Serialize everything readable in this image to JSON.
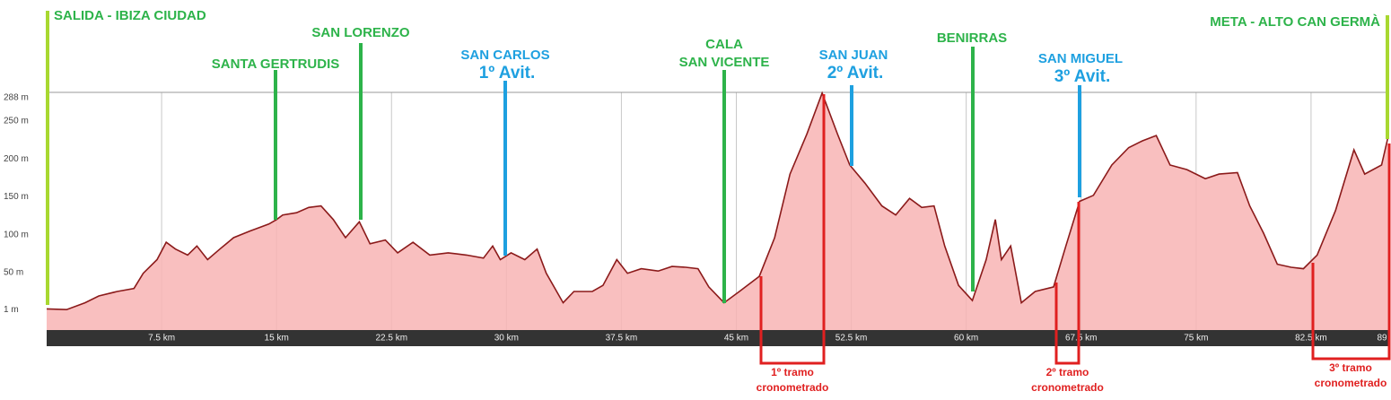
{
  "chart_data": {
    "type": "area",
    "x": [
      0,
      1.3,
      2.5,
      3.4,
      4.6,
      5.7,
      6.3,
      7.2,
      7.8,
      8.4,
      9.2,
      9.8,
      10.5,
      11.3,
      12.2,
      13.3,
      14.5,
      15,
      15.4,
      16.3,
      17.1,
      17.9,
      18.7,
      19.5,
      20.4,
      21.1,
      22.1,
      22.9,
      23.9,
      25,
      26.2,
      27.4,
      28.5,
      29.1,
      29.6,
      30.3,
      31.2,
      32,
      32.6,
      33.7,
      34.4,
      35.6,
      36.3,
      37.2,
      37.9,
      38.8,
      39.9,
      40.8,
      41.7,
      42.5,
      43.2,
      44.2,
      45.2,
      46.5,
      47.5,
      48.5,
      49.6,
      50.6,
      51.6,
      52.4,
      53.4,
      54.5,
      55.4,
      56.3,
      57.1,
      57.9,
      58.6,
      59.5,
      60.4,
      61.3,
      61.9,
      62.3,
      62.9,
      63.6,
      64.5,
      65.7,
      66.5,
      67.4,
      68.3,
      69.5,
      70.6,
      71.5,
      72.4,
      73.3,
      74.4,
      75.6,
      76.5,
      77.7,
      78.5,
      79.4,
      80.3,
      81.2,
      82,
      82.9,
      84.1,
      85.3,
      86,
      87.1,
      87.5
    ],
    "values": [
      2,
      1,
      10,
      19,
      25,
      29,
      49,
      67,
      90,
      81,
      73,
      85,
      67,
      81,
      96,
      105,
      114,
      120,
      126,
      129,
      136,
      138,
      120,
      96,
      117,
      88,
      93,
      76,
      90,
      73,
      76,
      73,
      69,
      85,
      67,
      76,
      67,
      81,
      49,
      10,
      25,
      25,
      33,
      67,
      49,
      55,
      52,
      58,
      57,
      55,
      31,
      10,
      25,
      45,
      96,
      180,
      233,
      287,
      233,
      192,
      168,
      138,
      126,
      148,
      136,
      138,
      85,
      33,
      13,
      67,
      120,
      67,
      85,
      10,
      25,
      31,
      85,
      144,
      152,
      192,
      215,
      224,
      231,
      192,
      186,
      174,
      180,
      182,
      138,
      102,
      61,
      57,
      55,
      73,
      132,
      212,
      180,
      192,
      227
    ],
    "color": "#8b1a1a",
    "fill": "#f8b4b4",
    "xlim": [
      0,
      87.6
    ],
    "ylim": [
      -26,
      288
    ],
    "xticks": [
      {
        "value": 7.5,
        "label": "7.5 km"
      },
      {
        "value": 15,
        "label": "15 km"
      },
      {
        "value": 22.5,
        "label": "22.5 km"
      },
      {
        "value": 30,
        "label": "30 km"
      },
      {
        "value": 37.5,
        "label": "37.5 km"
      },
      {
        "value": 45,
        "label": "45 km"
      },
      {
        "value": 52.5,
        "label": "52.5 km"
      },
      {
        "value": 60,
        "label": "60 km"
      },
      {
        "value": 67.5,
        "label": "67.5 km"
      },
      {
        "value": 75,
        "label": "75 km"
      },
      {
        "value": 82.5,
        "label": "82.5 km"
      },
      89
    ],
    "yticks": [
      {
        "value": 1,
        "label": "1 m"
      },
      {
        "value": 50,
        "label": "50 m"
      },
      {
        "value": 100,
        "label": "100 m"
      },
      {
        "value": 150,
        "label": "150 m"
      },
      {
        "value": 200,
        "label": "200 m"
      },
      {
        "value": 250,
        "label": "250 m"
      },
      {
        "value": 288,
        "label": "288 m"
      }
    ],
    "grid": true,
    "towns": [
      {
        "lines": [
          "SALIDA - IBIZA CIUDAD"
        ],
        "color": "#a8d830"
      },
      {
        "lines": [
          "SANTA GERTRUDIS"
        ],
        "color": "#2db34a"
      },
      {
        "lines": [
          "SAN LORENZO"
        ],
        "color": "#2db34a"
      },
      {
        "lines": [
          "SAN CARLOS"
        ],
        "avit": "1º Avit.",
        "color": "#1ea0e0"
      },
      {
        "lines": [
          "CALA",
          "SAN VICENTE"
        ],
        "color": "#2db34a"
      },
      {
        "lines": [
          "SAN JUAN"
        ],
        "avit": "2º Avit.",
        "color": "#1ea0e0"
      },
      {
        "lines": [
          "BENIRRAS"
        ],
        "color": "#2db34a"
      },
      {
        "lines": [
          "SAN MIGUEL"
        ],
        "avit": "3º Avit.",
        "color": "#1ea0e0"
      },
      {
        "lines": [
          "META - ALTO CAN GERMÀ"
        ],
        "color": "#a8d830"
      }
    ],
    "stages": [
      {
        "lines": [
          "1º tramo",
          "cronometrado"
        ],
        "color": "#e02020"
      },
      {
        "lines": [
          "2º tramo",
          "cronometrado"
        ],
        "color": "#e02020"
      },
      {
        "lines": [
          "3º tramo",
          "cronometrado"
        ],
        "color": "#e02020"
      }
    ]
  }
}
